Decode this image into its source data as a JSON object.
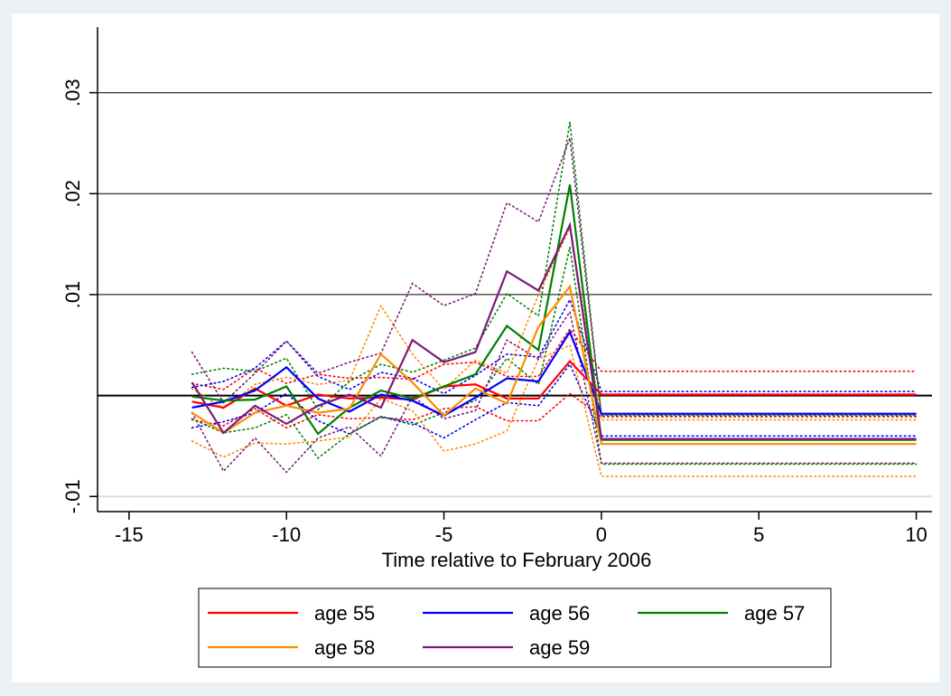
{
  "chart_data": {
    "type": "line",
    "title": "",
    "xlabel": "Time relative to February 2006",
    "ylabel": "",
    "xlim": [
      -16,
      10.5
    ],
    "ylim": [
      -0.0115,
      0.0365
    ],
    "x_ticks": [
      -15,
      -10,
      -5,
      0,
      5,
      10
    ],
    "x_tick_labels": [
      "-15",
      "-10",
      "-5",
      "0",
      "5",
      "10"
    ],
    "y_ticks": [
      -0.01,
      0.01,
      0.02,
      0.03
    ],
    "y_tick_labels": [
      "-.01",
      ".01",
      ".02",
      ".03"
    ],
    "reference_line_y": 0,
    "grid": true,
    "legend_position": "bottom",
    "x": [
      -13,
      -12,
      -11,
      -10,
      -9,
      -8,
      -7,
      -6,
      -5,
      -4,
      -3,
      -2,
      -1,
      0,
      1,
      2,
      3,
      4,
      5,
      6,
      7,
      8,
      9,
      10
    ],
    "series": [
      {
        "name": "age 55",
        "color": "#ff0000",
        "values": [
          -0.0006,
          -0.0012,
          0.0007,
          -0.001,
          0.0001,
          -0.0003,
          -0.0002,
          -0.0004,
          0.0009,
          0.0011,
          -0.0003,
          -0.0003,
          0.0034,
          0.0001,
          0.0001,
          0.0001,
          0.0001,
          0.0001,
          0.0001,
          0.0001,
          0.0001,
          0.0001,
          0.0001,
          0.0001
        ],
        "ci_upper": [
          0.0012,
          0.0006,
          0.0027,
          0.0012,
          0.0021,
          0.0017,
          0.0018,
          0.0016,
          0.0031,
          0.0033,
          0.0019,
          0.0019,
          0.0066,
          0.0024,
          0.0024,
          0.0024,
          0.0024,
          0.0024,
          0.0024,
          0.0024,
          0.0024,
          0.0024,
          0.0024,
          0.0024
        ],
        "ci_lower": [
          -0.0024,
          -0.003,
          -0.0013,
          -0.0032,
          -0.0019,
          -0.0023,
          -0.0022,
          -0.0024,
          -0.0013,
          -0.0011,
          -0.0025,
          -0.0025,
          0.0002,
          -0.0021,
          -0.0021,
          -0.0021,
          -0.0021,
          -0.0021,
          -0.0021,
          -0.0021,
          -0.0021,
          -0.0021,
          -0.0021,
          -0.0021
        ]
      },
      {
        "name": "age 56",
        "color": "#0000ff",
        "values": [
          -0.0012,
          -0.0006,
          0.0005,
          0.0028,
          -0.0003,
          -0.0016,
          0.0001,
          -0.0005,
          -0.002,
          -0.0002,
          0.0017,
          0.0014,
          0.0063,
          -0.0018,
          -0.0018,
          -0.0018,
          -0.0018,
          -0.0018,
          -0.0018,
          -0.0018,
          -0.0018,
          -0.0018,
          -0.0018,
          -0.0018
        ],
        "ci_upper": [
          0.0008,
          0.0014,
          0.0027,
          0.0054,
          0.0019,
          0.0006,
          0.0023,
          0.0017,
          0.0002,
          0.002,
          0.0041,
          0.0038,
          0.0095,
          0.0004,
          0.0004,
          0.0004,
          0.0004,
          0.0004,
          0.0004,
          0.0004,
          0.0004,
          0.0004,
          0.0004,
          0.0004
        ],
        "ci_lower": [
          -0.0032,
          -0.0026,
          -0.0017,
          0.0002,
          -0.0025,
          -0.0038,
          -0.0021,
          -0.0027,
          -0.0042,
          -0.0024,
          -0.0007,
          -0.001,
          0.0031,
          -0.004,
          -0.004,
          -0.004,
          -0.004,
          -0.004,
          -0.004,
          -0.004,
          -0.004,
          -0.004,
          -0.004,
          -0.004
        ]
      },
      {
        "name": "age 57",
        "color": "#008000",
        "values": [
          -0.0001,
          -0.0005,
          -0.0004,
          0.0009,
          -0.0038,
          -0.0012,
          0.0005,
          -0.0003,
          0.0009,
          0.0021,
          0.0069,
          0.0045,
          0.0209,
          -0.0044,
          -0.0044,
          -0.0044,
          -0.0044,
          -0.0044,
          -0.0044,
          -0.0044,
          -0.0044,
          -0.0044,
          -0.0044,
          -0.0044
        ],
        "ci_upper": [
          0.0021,
          0.0027,
          0.0024,
          0.0037,
          -0.0014,
          0.0014,
          0.0031,
          0.0023,
          0.0035,
          0.0047,
          0.0101,
          0.0079,
          0.0271,
          -0.002,
          -0.002,
          -0.002,
          -0.002,
          -0.002,
          -0.002,
          -0.002,
          -0.002,
          -0.002,
          -0.002,
          -0.002
        ],
        "ci_lower": [
          -0.0023,
          -0.0037,
          -0.0032,
          -0.0019,
          -0.0062,
          -0.0038,
          -0.0021,
          -0.0029,
          -0.0017,
          -0.0005,
          0.0037,
          0.0011,
          0.0147,
          -0.0068,
          -0.0068,
          -0.0068,
          -0.0068,
          -0.0068,
          -0.0068,
          -0.0068,
          -0.0068,
          -0.0068,
          -0.0068,
          -0.0068
        ]
      },
      {
        "name": "age 58",
        "color": "#ff8c00",
        "values": [
          -0.0017,
          -0.0037,
          -0.0017,
          -0.001,
          -0.0017,
          -0.0013,
          0.0041,
          0.0013,
          -0.002,
          0.0007,
          -0.0008,
          0.0068,
          0.0108,
          -0.0048,
          -0.0048,
          -0.0048,
          -0.0048,
          -0.0048,
          -0.0048,
          -0.0048,
          -0.0048,
          -0.0048,
          -0.0048,
          -0.0048
        ],
        "ci_upper": [
          0.0007,
          -0.0013,
          0.0011,
          0.0018,
          0.0011,
          0.0015,
          0.0089,
          0.0041,
          0.0006,
          0.0035,
          0.0022,
          0.01,
          0.0166,
          -0.0024,
          -0.0024,
          -0.0024,
          -0.0024,
          -0.0024,
          -0.0024,
          -0.0024,
          -0.0024,
          -0.0024,
          -0.0024,
          -0.0024
        ],
        "ci_lower": [
          -0.0045,
          -0.0061,
          -0.0047,
          -0.0048,
          -0.0045,
          -0.0041,
          -0.0003,
          -0.0015,
          -0.0055,
          -0.0048,
          -0.0035,
          0.0036,
          0.005,
          -0.008,
          -0.008,
          -0.008,
          -0.008,
          -0.008,
          -0.008,
          -0.008,
          -0.008,
          -0.008,
          -0.008,
          -0.008
        ]
      },
      {
        "name": "age 59",
        "color": "#7b1a7b",
        "values": [
          0.0013,
          -0.0037,
          -0.001,
          -0.0028,
          -0.001,
          0.0001,
          -0.0012,
          0.0055,
          0.0033,
          0.0043,
          0.0123,
          0.0104,
          0.0169,
          -0.0043,
          -0.0043,
          -0.0043,
          -0.0043,
          -0.0043,
          -0.0043,
          -0.0043,
          -0.0043,
          -0.0043,
          -0.0043,
          -0.0043
        ],
        "ci_upper": [
          0.0043,
          -0.0007,
          0.0022,
          0.0054,
          0.0022,
          0.0033,
          0.0042,
          0.0111,
          0.0089,
          0.0101,
          0.0191,
          0.0172,
          0.0255,
          -0.0019,
          -0.0019,
          -0.0019,
          -0.0019,
          -0.0019,
          -0.0019,
          -0.0019,
          -0.0019,
          -0.0019,
          -0.0019,
          -0.0019
        ],
        "ci_lower": [
          -0.0017,
          -0.0075,
          -0.0042,
          -0.0076,
          -0.0042,
          -0.0031,
          -0.006,
          -0.0001,
          -0.0023,
          -0.0015,
          0.0055,
          0.0036,
          0.0083,
          -0.0067,
          -0.0067,
          -0.0067,
          -0.0067,
          -0.0067,
          -0.0067,
          -0.0067,
          -0.0067,
          -0.0067,
          -0.0067,
          -0.0067
        ]
      }
    ]
  }
}
